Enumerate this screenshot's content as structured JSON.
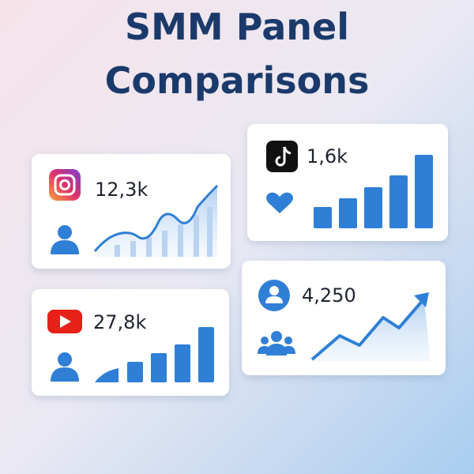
{
  "title": [
    "SMM Panel",
    "Comparisons"
  ],
  "cards": [
    {
      "stat": "12,3k"
    },
    {
      "stat": "1,6k"
    },
    {
      "stat": "27,8k"
    },
    {
      "stat": "4,250"
    }
  ]
}
